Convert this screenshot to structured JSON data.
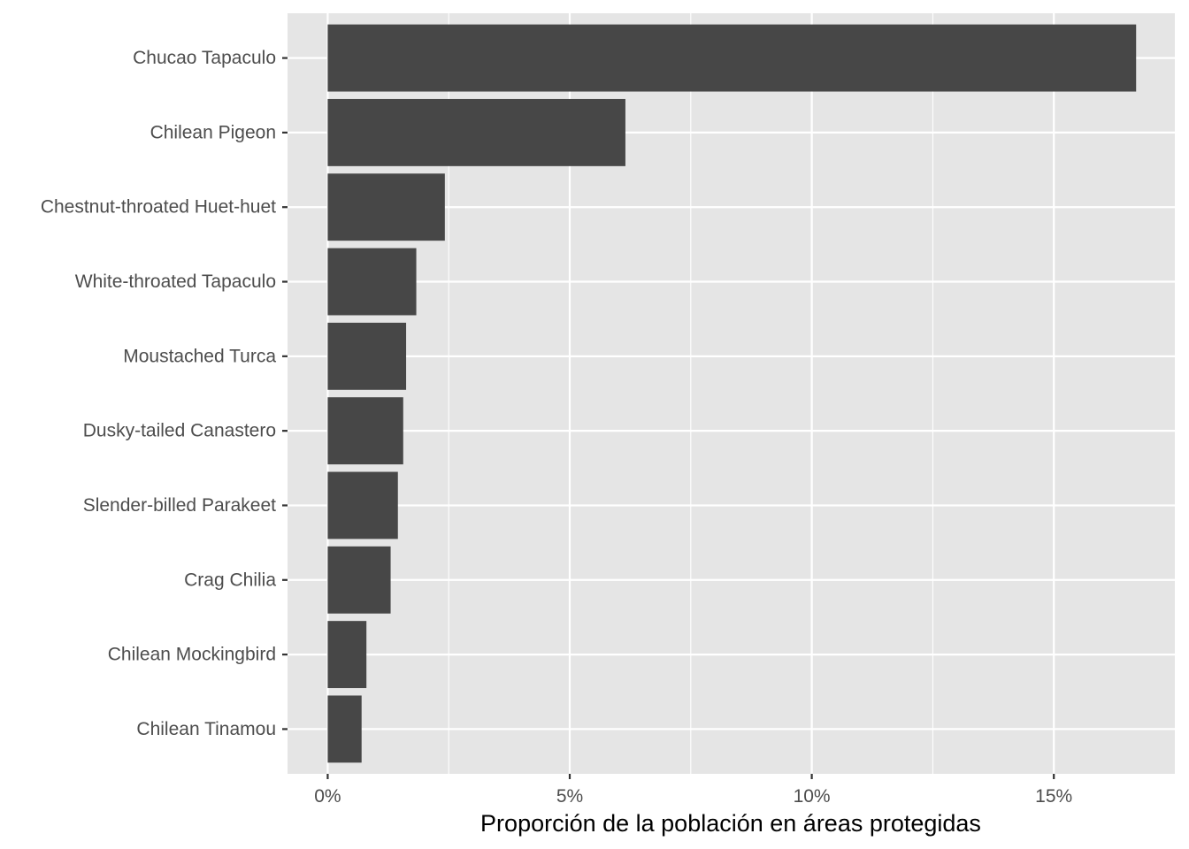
{
  "chart_data": {
    "type": "bar",
    "orientation": "horizontal",
    "title": "",
    "xlabel": "Proporción de la población en áreas protegidas",
    "ylabel": "",
    "categories": [
      "Chucao Tapaculo",
      "Chilean Pigeon",
      "Chestnut-throated Huet-huet",
      "White-throated Tapaculo",
      "Moustached Turca",
      "Dusky-tailed Canastero",
      "Slender-billed Parakeet",
      "Crag Chilia",
      "Chilean Mockingbird",
      "Chilean Tinamou"
    ],
    "values": [
      16.7,
      6.15,
      2.42,
      1.83,
      1.62,
      1.56,
      1.45,
      1.3,
      0.8,
      0.7
    ],
    "value_unit": "%",
    "xlim": [
      -0.83,
      17.5
    ],
    "xticks": [
      0,
      5,
      10,
      15
    ],
    "xtick_labels": [
      "0%",
      "5%",
      "10%",
      "15%"
    ],
    "grid": true,
    "legend": "none",
    "colors": {
      "bar": "#474747",
      "panel": "#e5e5e5",
      "grid": "#ffffff",
      "text": "#4d4d4d"
    }
  }
}
